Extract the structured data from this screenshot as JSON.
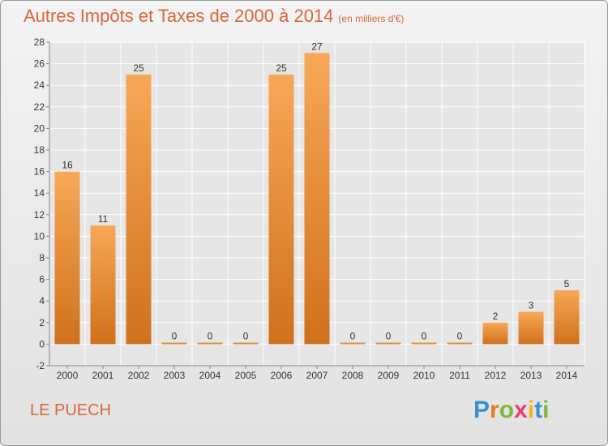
{
  "title": "Autres Impôts et Taxes de 2000 à 2014",
  "subtitle": "(en milliers d'€)",
  "location": "LE PUECH",
  "logo": {
    "text": "Proxiti",
    "letter_colors": [
      "#3a8fd1",
      "#e57a1f",
      "#7ab93a",
      "#e83f6f",
      "#f2b21f",
      "#3a8fd1",
      "#7ab93a"
    ]
  },
  "colors": {
    "accent": "#d9663a",
    "bar_light": "#f7a857",
    "bar_dark": "#d0711c",
    "grid": "#ffffff",
    "axis": "#888888",
    "text": "#333333"
  },
  "chart_data": {
    "type": "bar",
    "title": "Autres Impôts et Taxes de 2000 à 2014",
    "subtitle": "(en milliers d'€)",
    "categories": [
      "2000",
      "2001",
      "2002",
      "2003",
      "2004",
      "2005",
      "2006",
      "2007",
      "2008",
      "2009",
      "2010",
      "2011",
      "2012",
      "2013",
      "2014"
    ],
    "values": [
      16,
      11,
      25,
      0,
      0,
      0,
      25,
      27,
      0,
      0,
      0,
      0,
      2,
      3,
      5
    ],
    "data_labels": [
      "16",
      "11",
      "25",
      "0",
      "0",
      "0",
      "25",
      "27",
      "0",
      "0",
      "0",
      "0",
      "2",
      "3",
      "5"
    ],
    "ylim": [
      -2,
      28
    ],
    "yticks": [
      -2,
      0,
      2,
      4,
      6,
      8,
      10,
      12,
      14,
      16,
      18,
      20,
      22,
      24,
      26,
      28
    ],
    "grid": true,
    "xlabel": "",
    "ylabel": ""
  }
}
